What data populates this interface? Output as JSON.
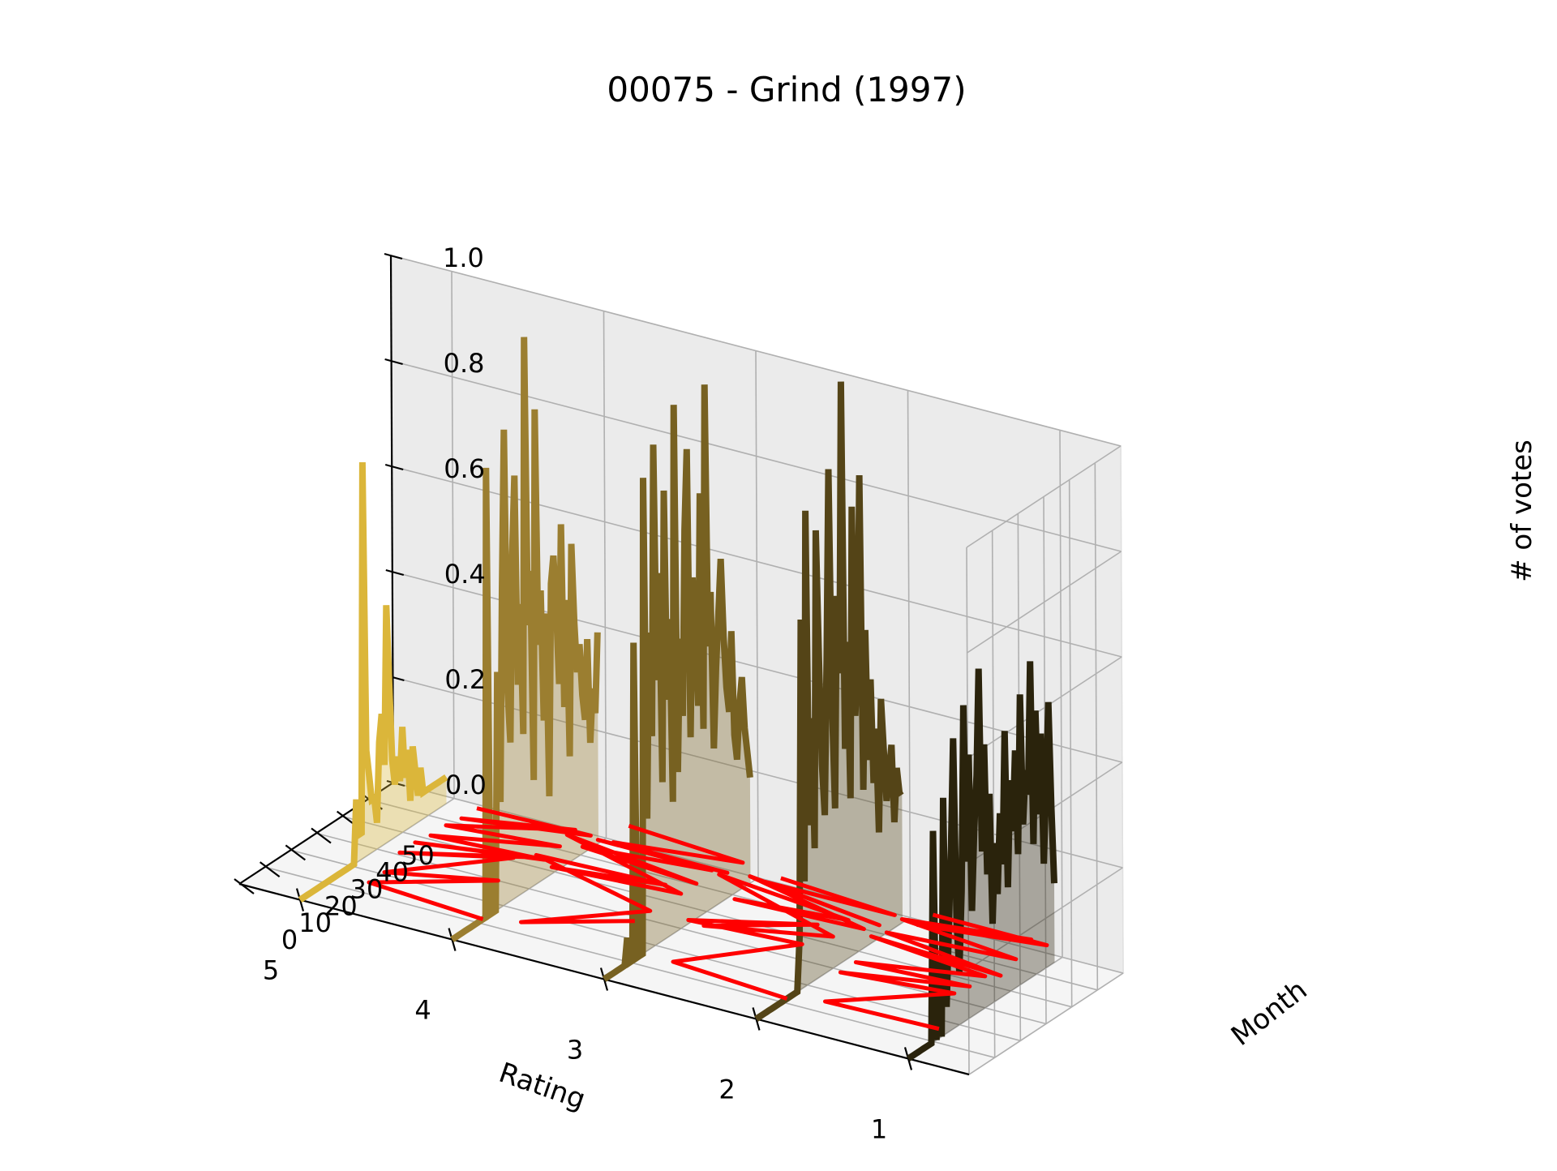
{
  "chart_data": {
    "type": "line",
    "projection": "3d",
    "title": "00075 - Grind (1997)",
    "xlabel": "Rating",
    "ylabel": "Month",
    "zlabel": "# of votes",
    "x_ticks": [
      5,
      4,
      3,
      2,
      1
    ],
    "x_tick_labels": [
      "5",
      "4",
      "3",
      "2",
      "1"
    ],
    "y_ticks": [
      0,
      10,
      20,
      30,
      40,
      50
    ],
    "y_tick_labels": [
      "0",
      "10",
      "20",
      "30",
      "40",
      "50"
    ],
    "z_ticks": [
      0.0,
      0.2,
      0.4,
      0.6,
      0.8,
      1.0
    ],
    "z_tick_labels": [
      "0.0",
      "0.2",
      "0.4",
      "0.6",
      "0.8",
      "1.0"
    ],
    "xlim": [
      0.6,
      5.4
    ],
    "ylim": [
      0,
      60
    ],
    "zlim": [
      0,
      1
    ],
    "grid": true,
    "overlay_color": "#ff0000",
    "series": [
      {
        "rating": 5,
        "color": "#dbb63a",
        "values": [
          0,
          0,
          0,
          0,
          0,
          0,
          0,
          0,
          0,
          0,
          0,
          0,
          0,
          0,
          0,
          0,
          0,
          0,
          0,
          0,
          0,
          0,
          0.12,
          0.05,
          0.05,
          0.75,
          0.2,
          0.15,
          0.1,
          0.1,
          0.05,
          0.2,
          0.25,
          0.15,
          0.45,
          0.3,
          0.15,
          0.1,
          0.15,
          0.1,
          0.2,
          0.1,
          0.15,
          0.05,
          0.15,
          0.1,
          0.05,
          0.1,
          0.05,
          0.05,
          0.05,
          0.05,
          0.05,
          0.05,
          0.05,
          0.05,
          0.05,
          0.05
        ]
      },
      {
        "rating": 4,
        "color": "#9b7e30",
        "values": [
          0,
          0,
          0,
          0,
          0,
          0,
          0,
          0,
          0,
          0,
          0,
          0,
          0,
          0,
          0.85,
          0,
          0,
          0,
          0.45,
          0.2,
          0.6,
          0.9,
          0.4,
          0.3,
          0.65,
          0.8,
          0.4,
          0.55,
          0.3,
          1.05,
          0.5,
          0.6,
          0.2,
          0.9,
          0.45,
          0.55,
          0.3,
          0.5,
          0.15,
          0.55,
          0.6,
          0.5,
          0.35,
          0.65,
          0.3,
          0.5,
          0.2,
          0.6,
          0.45,
          0.35,
          0.4,
          0.3,
          0.25,
          0.4,
          0.2,
          0.3,
          0.25,
          0.4
        ]
      },
      {
        "rating": 3,
        "color": "#776121",
        "values": [
          0,
          0,
          0,
          0,
          0,
          0,
          0,
          0,
          0,
          0.05,
          0,
          0,
          0.6,
          0,
          0,
          0,
          0.9,
          0.25,
          0.6,
          0.4,
          0.95,
          0.5,
          0.7,
          0.3,
          0.85,
          0.45,
          0.6,
          0.25,
          1.0,
          0.3,
          0.55,
          0.4,
          0.75,
          0.9,
          0.35,
          0.65,
          0.55,
          0.4,
          0.8,
          0.35,
          1.0,
          0.5,
          0.6,
          0.3,
          0.45,
          0.55,
          0.65,
          0.5,
          0.4,
          0.35,
          0.5,
          0.3,
          0.25,
          0.35,
          0.4,
          0.3,
          0.25,
          0.2
        ]
      },
      {
        "rating": 2,
        "color": "#544417",
        "values": [
          0,
          0,
          0,
          0,
          0,
          0,
          0,
          0,
          0,
          0,
          0,
          0,
          0,
          0,
          0,
          0,
          0,
          0.1,
          0.7,
          0.2,
          0.9,
          0.3,
          0.5,
          0.25,
          0.85,
          0.6,
          0.4,
          0.3,
          0.6,
          0.95,
          0.5,
          0.3,
          0.7,
          0.55,
          1.2,
          0.4,
          0.6,
          0.3,
          0.85,
          0.45,
          0.55,
          0.9,
          0.3,
          0.6,
          0.35,
          0.5,
          0.3,
          0.4,
          0.2,
          0.45,
          0.35,
          0.25,
          0.3,
          0.35,
          0.2,
          0.3,
          0.25,
          0.25
        ]
      },
      {
        "rating": 1,
        "color": "#2a230c",
        "values": [
          0,
          0,
          0,
          0,
          0,
          0,
          0,
          0,
          0,
          0,
          0.4,
          0,
          0.15,
          0,
          0.45,
          0.05,
          0.2,
          0.35,
          0.55,
          0.2,
          0.1,
          0.25,
          0.6,
          0.3,
          0.5,
          0.2,
          0.35,
          0.45,
          0.65,
          0.3,
          0.5,
          0.25,
          0.4,
          0.15,
          0.3,
          0.2,
          0.35,
          0.25,
          0.5,
          0.2,
          0.4,
          0.3,
          0.45,
          0.25,
          0.55,
          0.3,
          0.4,
          0.35,
          0.6,
          0.25,
          0.5,
          0.3,
          0.45,
          0.2,
          0.35,
          0.5,
          0.3,
          0.15
        ]
      }
    ]
  }
}
